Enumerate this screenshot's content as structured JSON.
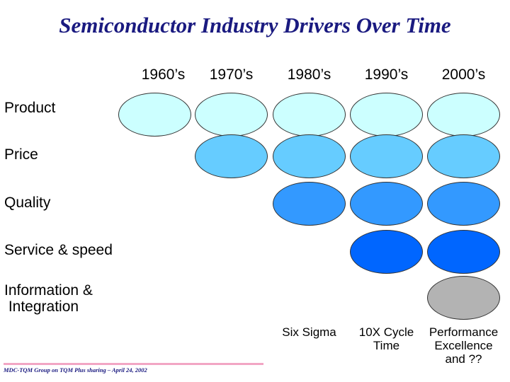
{
  "title": "Semiconductor Industry Drivers Over Time",
  "decades": [
    "1960’s",
    "1970’s",
    "1980’s",
    "1990’s",
    "2000’s"
  ],
  "rows": [
    {
      "label": "Product",
      "start_decade": 0,
      "color": "#ccffff"
    },
    {
      "label": "Price",
      "start_decade": 1,
      "color": "#66ccff"
    },
    {
      "label": "Quality",
      "start_decade": 2,
      "color": "#3399ff"
    },
    {
      "label": "Service & speed",
      "start_decade": 3,
      "color": "#0066ff"
    },
    {
      "label": "Information &\n Integration",
      "start_decade": 4,
      "color": "#b3b3b3"
    }
  ],
  "notes": [
    {
      "decade": 2,
      "text": "Six Sigma"
    },
    {
      "decade": 3,
      "text": "10X Cycle\nTime"
    },
    {
      "decade": 4,
      "text": "Performance\nExcellence\nand ??"
    }
  ],
  "footer": "MDC-TQM Group on TQM Plus sharing – April 24, 2002"
}
